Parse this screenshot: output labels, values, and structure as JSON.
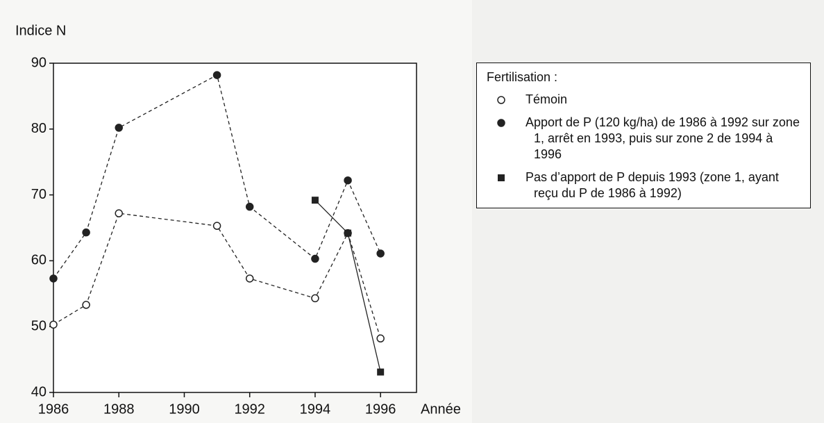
{
  "chart_data": {
    "type": "line",
    "y_label": "Indice N",
    "x_label": "Année",
    "x": [
      1986,
      1987,
      1988,
      1991,
      1992,
      1994,
      1995,
      1996
    ],
    "series": [
      {
        "name": "Témoin",
        "color": "#222222",
        "marker": "open-circle",
        "line": "dashed",
        "values": [
          50.3,
          53.3,
          67.2,
          65.3,
          57.3,
          54.3,
          64.2,
          48.2
        ]
      },
      {
        "name": "Apport de P (120 kg/ha) de 1986 à 1992 sur zone 1, arrêt en 1993, puis sur zone 2 de 1994 à 1996",
        "color": "#222222",
        "marker": "circle",
        "line": "dashed",
        "values": [
          57.3,
          64.3,
          80.2,
          88.2,
          68.2,
          60.3,
          72.2,
          61.1
        ]
      },
      {
        "name": "Pas d’apport de P depuis 1993 (zone 1, ayant reçu du P de 1986 à 1992)",
        "color": "#222222",
        "marker": "square",
        "line": "solid",
        "values": [
          null,
          null,
          null,
          null,
          null,
          69.2,
          64.2,
          43.1
        ]
      }
    ],
    "legend_title": "Fertilisation :",
    "legend": "top-right",
    "xlim": [
      1986,
      1997.1
    ],
    "xticks": [
      1986,
      1988,
      1990,
      1992,
      1994,
      1996
    ],
    "ylim": [
      40,
      90
    ],
    "yticks": [
      40,
      50,
      60,
      70,
      80,
      90
    ]
  }
}
